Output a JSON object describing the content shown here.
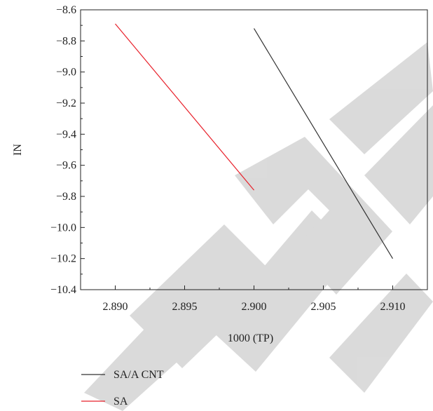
{
  "chart_data": {
    "type": "line",
    "xlabel": "1000 (TP)",
    "ylabel": "IN",
    "xlim": [
      2.8875,
      2.9125
    ],
    "ylim": [
      -10.4,
      -8.6
    ],
    "xticks": [
      2.89,
      2.895,
      2.9,
      2.905,
      2.91
    ],
    "xtick_labels": [
      "2.890",
      "2.895",
      "2.900",
      "2.905",
      "2.910"
    ],
    "yticks": [
      -8.6,
      -8.8,
      -9.0,
      -9.2,
      -9.4,
      -9.6,
      -9.8,
      -10.0,
      -10.2,
      -10.4
    ],
    "ytick_labels": [
      "−8.6",
      "−8.8",
      "−9.0",
      "−9.2",
      "−9.4",
      "−9.6",
      "−9.8",
      "−10.0",
      "−10.2",
      "−10.4"
    ],
    "series": [
      {
        "name": "SA/A CNT",
        "color": "#333333",
        "x": [
          2.9,
          2.91
        ],
        "y": [
          -8.72,
          -10.2
        ]
      },
      {
        "name": "SA",
        "color": "#e8202a",
        "x": [
          2.89,
          2.9
        ],
        "y": [
          -8.69,
          -9.76
        ]
      }
    ],
    "legend_placement": "bottom-left, below plot",
    "grid": false,
    "watermark": "RETRACTED"
  }
}
